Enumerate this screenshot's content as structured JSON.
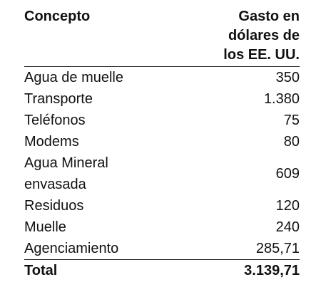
{
  "table": {
    "header": [
      "Concepto",
      "Gasto en\ndólares de\nlos EE. UU."
    ],
    "rows": [
      [
        "Agua de muelle",
        "350"
      ],
      [
        "Transporte",
        "1.380"
      ],
      [
        "Teléfonos",
        "75"
      ],
      [
        "Modems",
        "80"
      ],
      [
        "Agua Mineral envasada",
        "609"
      ],
      [
        "Residuos",
        "120"
      ],
      [
        "Muelle",
        "240"
      ],
      [
        "Agenciamiento",
        "285,71"
      ]
    ],
    "total": [
      "Total",
      "3.139,71"
    ]
  }
}
